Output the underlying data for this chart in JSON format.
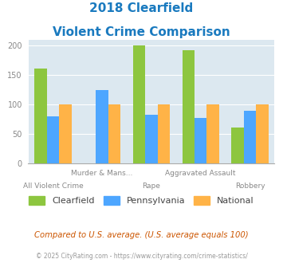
{
  "title_line1": "2018 Clearfield",
  "title_line2": "Violent Crime Comparison",
  "title_color": "#1a7abf",
  "categories": [
    "All Violent Crime",
    "Murder & Mans...",
    "Rape",
    "Aggravated Assault",
    "Robbery"
  ],
  "clearfield": [
    160,
    0,
    200,
    192,
    61
  ],
  "pennsylvania": [
    80,
    124,
    82,
    76,
    89
  ],
  "national": [
    100,
    100,
    100,
    100,
    100
  ],
  "colors": {
    "clearfield": "#8dc63f",
    "pennsylvania": "#4da6ff",
    "national": "#ffb347"
  },
  "ylim": [
    0,
    210
  ],
  "yticks": [
    0,
    50,
    100,
    150,
    200
  ],
  "plot_bg": "#dce8f0",
  "legend_labels": [
    "Clearfield",
    "Pennsylvania",
    "National"
  ],
  "footnote1": "Compared to U.S. average. (U.S. average equals 100)",
  "footnote2": "© 2025 CityRating.com - https://www.cityrating.com/crime-statistics/",
  "footnote1_color": "#cc5500",
  "footnote2_color": "#999999",
  "x_top_labels": [
    "",
    "Murder & Mans...",
    "",
    "Aggravated Assault",
    ""
  ],
  "x_bot_labels": [
    "All Violent Crime",
    "",
    "Rape",
    "",
    "Robbery"
  ]
}
